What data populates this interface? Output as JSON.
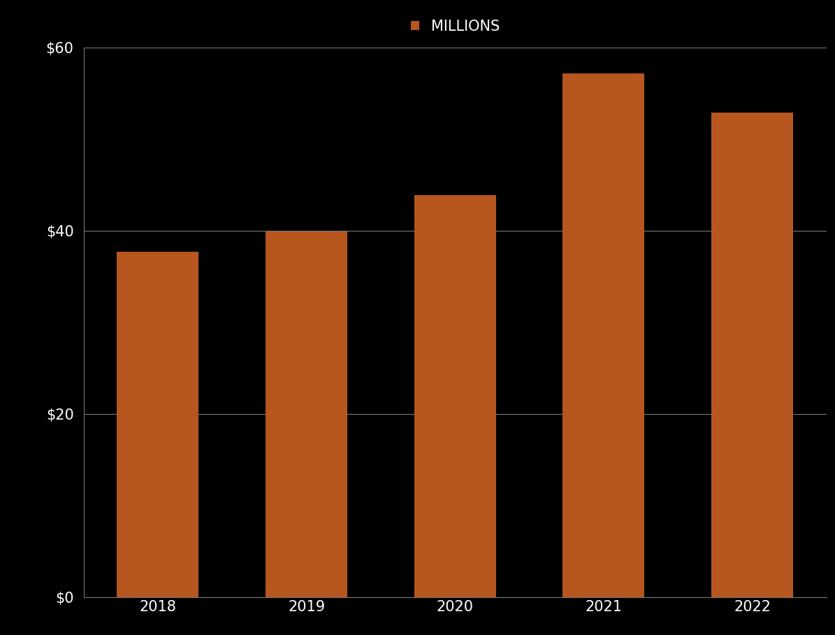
{
  "chart_data": {
    "type": "bar",
    "categories": [
      "2018",
      "2019",
      "2020",
      "2021",
      "2022"
    ],
    "series": [
      {
        "name": "MILLIONS",
        "color": "#b8561f",
        "values": [
          37.7,
          39.9,
          43.9,
          57.2,
          52.9
        ]
      }
    ],
    "ylim": [
      0,
      60
    ],
    "yticks": [
      {
        "value": 0,
        "label": "$0"
      },
      {
        "value": 20,
        "label": "$20"
      },
      {
        "value": 40,
        "label": "$40"
      },
      {
        "value": 60,
        "label": "$60"
      }
    ],
    "grid": true,
    "legend": "upper center"
  }
}
